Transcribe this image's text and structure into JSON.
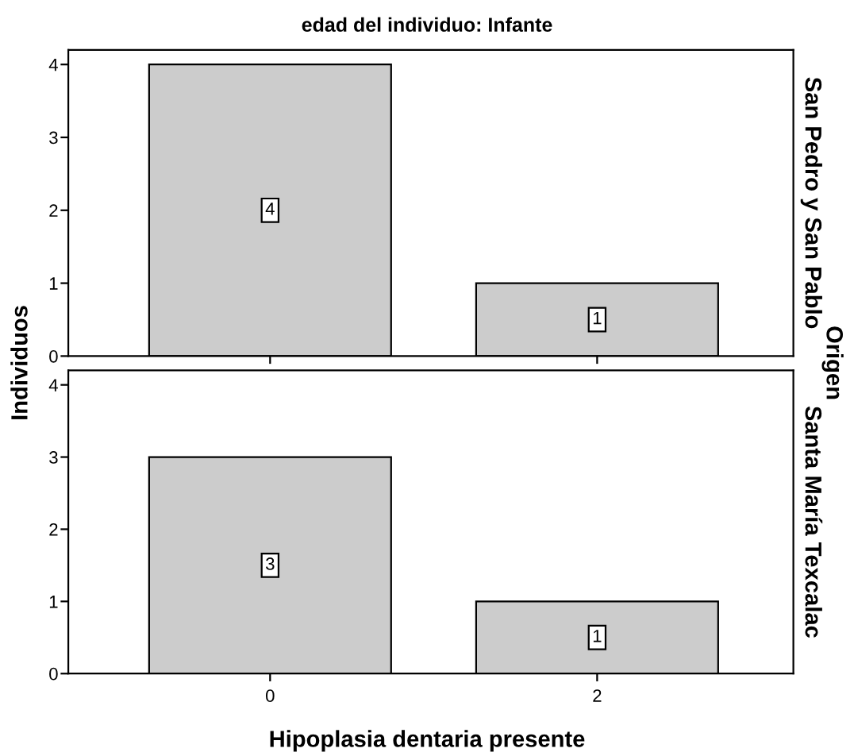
{
  "chart_data": [
    {
      "type": "bar",
      "title": "edad del individuo: Infante",
      "ylabel": "Individuos",
      "y2label": "San Pedro y San Pablo",
      "annotations": [
        "Origen"
      ],
      "categories": [
        "0",
        "2"
      ],
      "values": [
        4,
        1
      ],
      "color": "#cccccc",
      "ylim": [
        0,
        4.2
      ],
      "yticks": [
        0,
        1,
        2,
        3,
        4
      ],
      "data_labels": true,
      "tick_labels": "y",
      "grid": false
    },
    {
      "type": "bar",
      "xlabel": "Hipoplasia dentaria presente",
      "y2label": "Santa María Texcalac",
      "categories": [
        "0",
        "2"
      ],
      "values": [
        3,
        1
      ],
      "color": "#cccccc",
      "ylim": [
        0,
        4.2
      ],
      "yticks": [
        0,
        1,
        2,
        3,
        4
      ],
      "data_labels": true,
      "grid": false
    }
  ]
}
